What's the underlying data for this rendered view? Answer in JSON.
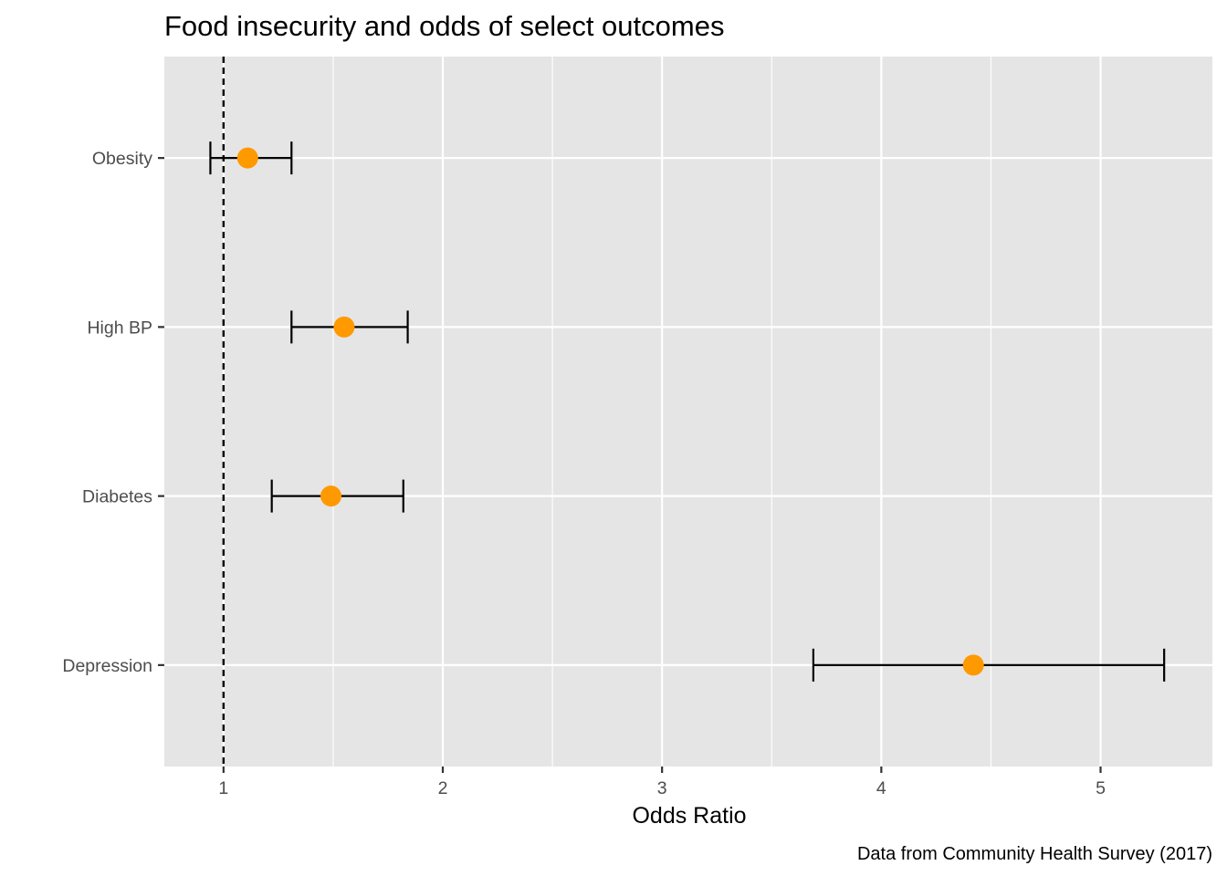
{
  "chart_data": {
    "type": "scatter",
    "subtype": "forest-plot",
    "title": "Food insecurity and odds of select outcomes",
    "caption": "Data from Community Health Survey (2017)",
    "xlabel": "Odds Ratio",
    "ylabel": "",
    "categories": [
      "Obesity",
      "High BP",
      "Diabetes",
      "Depression"
    ],
    "estimates": [
      1.11,
      1.55,
      1.49,
      4.42
    ],
    "ci_lower": [
      0.94,
      1.31,
      1.22,
      3.69
    ],
    "ci_upper": [
      1.31,
      1.84,
      1.82,
      5.29
    ],
    "reference_line": 1,
    "xlim": [
      0.73,
      5.51
    ],
    "x_ticks": [
      1,
      2,
      3,
      4,
      5
    ],
    "x_minor_ticks": [
      1.5,
      2.5,
      3.5,
      4.5
    ],
    "grid": true,
    "legend": "none",
    "colors": {
      "point": "#FF9900",
      "panel_background": "#E5E5E5",
      "grid": "#FFFFFF",
      "errorbar": "#000000",
      "tick_label": "#4D4D4D"
    }
  }
}
